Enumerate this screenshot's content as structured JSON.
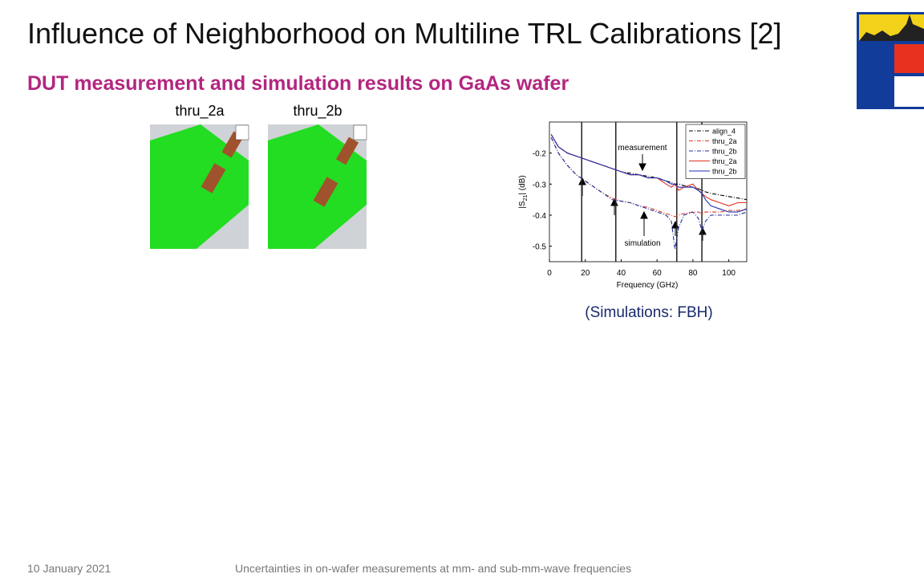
{
  "slide": {
    "title": "Influence of Neighborhood on Multiline TRL Calibrations [2]",
    "subtitle": "DUT measurement and simulation results on GaAs wafer",
    "images": [
      {
        "label": "thru_2a"
      },
      {
        "label": "thru_2b"
      }
    ],
    "caption": "(Simulations: FBH)",
    "footer_date": "10 January 2021",
    "footer_text": "Uncertainties in on-wafer measurements at mm- and sub-mm-wave frequencies"
  },
  "chart_data": {
    "type": "line",
    "xlabel": "Frequency (GHz)",
    "ylabel": [
      "|S",
      "21",
      "| (dB)"
    ],
    "annotations": [
      "measurement",
      "simulation"
    ],
    "x": [
      1,
      5,
      10,
      15,
      20,
      25,
      30,
      35,
      40,
      45,
      50,
      55,
      60,
      65,
      68,
      70,
      72,
      75,
      80,
      83,
      85,
      87,
      90,
      95,
      100,
      105,
      110
    ],
    "xlim": [
      0,
      110
    ],
    "xticks": [
      0,
      20,
      40,
      60,
      80,
      100
    ],
    "ylim": [
      -0.55,
      -0.1
    ],
    "yticks": [
      -0.5,
      -0.4,
      -0.3,
      -0.2
    ],
    "vlines": [
      18,
      37,
      71,
      85
    ],
    "series": [
      {
        "name": "align_4",
        "color": "#000000",
        "style": "dash-dot",
        "values": [
          -0.14,
          -0.18,
          -0.2,
          -0.21,
          -0.22,
          -0.23,
          -0.24,
          -0.25,
          -0.26,
          -0.265,
          -0.27,
          -0.275,
          -0.28,
          -0.29,
          -0.295,
          -0.3,
          -0.3,
          -0.305,
          -0.31,
          -0.315,
          -0.32,
          -0.325,
          -0.33,
          -0.335,
          -0.34,
          -0.345,
          -0.35
        ]
      },
      {
        "name": "thru_2a",
        "color": "#d93a2b",
        "style": "dash-dot",
        "values": [
          -0.15,
          -0.2,
          -0.24,
          -0.27,
          -0.29,
          -0.31,
          -0.33,
          -0.345,
          -0.355,
          -0.36,
          -0.37,
          -0.375,
          -0.385,
          -0.395,
          -0.4,
          -0.405,
          -0.4,
          -0.395,
          -0.39,
          -0.39,
          -0.395,
          -0.39,
          -0.39,
          -0.39,
          -0.385,
          -0.385,
          -0.38
        ]
      },
      {
        "name": "thru_2b",
        "color": "#1f2fa0",
        "style": "dash-dot",
        "values": [
          -0.15,
          -0.2,
          -0.24,
          -0.27,
          -0.29,
          -0.31,
          -0.33,
          -0.35,
          -0.355,
          -0.36,
          -0.37,
          -0.38,
          -0.39,
          -0.4,
          -0.42,
          -0.51,
          -0.44,
          -0.4,
          -0.39,
          -0.41,
          -0.45,
          -0.42,
          -0.4,
          -0.4,
          -0.4,
          -0.4,
          -0.39
        ]
      },
      {
        "name": "thru_2a",
        "color": "#e03020",
        "style": "solid",
        "values": [
          -0.14,
          -0.18,
          -0.2,
          -0.21,
          -0.22,
          -0.23,
          -0.24,
          -0.25,
          -0.26,
          -0.27,
          -0.27,
          -0.28,
          -0.28,
          -0.3,
          -0.31,
          -0.3,
          -0.32,
          -0.31,
          -0.3,
          -0.32,
          -0.33,
          -0.34,
          -0.35,
          -0.36,
          -0.37,
          -0.36,
          -0.36
        ]
      },
      {
        "name": "thru_2b",
        "color": "#2030b0",
        "style": "solid",
        "values": [
          -0.14,
          -0.18,
          -0.2,
          -0.21,
          -0.22,
          -0.23,
          -0.24,
          -0.25,
          -0.26,
          -0.27,
          -0.27,
          -0.28,
          -0.28,
          -0.29,
          -0.3,
          -0.3,
          -0.31,
          -0.31,
          -0.31,
          -0.32,
          -0.33,
          -0.35,
          -0.37,
          -0.38,
          -0.39,
          -0.39,
          -0.38
        ]
      }
    ]
  }
}
